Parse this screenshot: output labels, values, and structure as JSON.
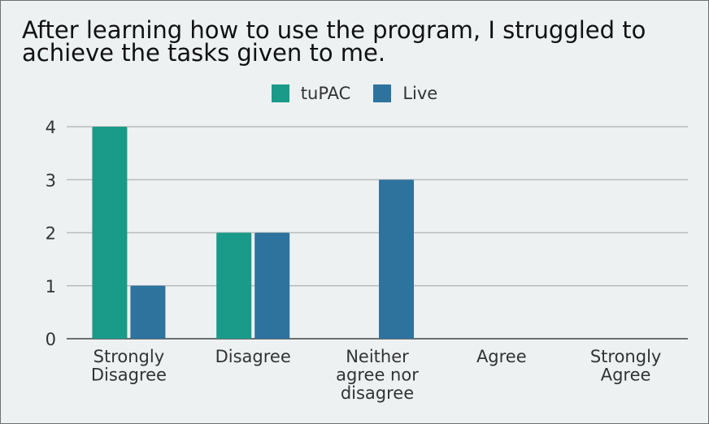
{
  "chart_data": {
    "type": "bar",
    "title": "After learning how to use the program, I struggled to\nachieve the tasks given to me.",
    "categories": [
      [
        "Strongly",
        "Disagree"
      ],
      [
        "Disagree"
      ],
      [
        "Neither",
        "agree nor",
        "disagree"
      ],
      [
        "Agree"
      ],
      [
        "Strongly",
        "Agree"
      ]
    ],
    "series": [
      {
        "name": "tuPAC",
        "color": "#1a9a88",
        "values": [
          4,
          2,
          0,
          0,
          0
        ]
      },
      {
        "name": "Live",
        "color": "#2e729e",
        "values": [
          1,
          2,
          3,
          0,
          0
        ]
      }
    ],
    "ylim": [
      0,
      4
    ],
    "yticks": [
      "0",
      "1",
      "2",
      "3",
      "4"
    ],
    "grid": true,
    "legend_position": "top"
  }
}
